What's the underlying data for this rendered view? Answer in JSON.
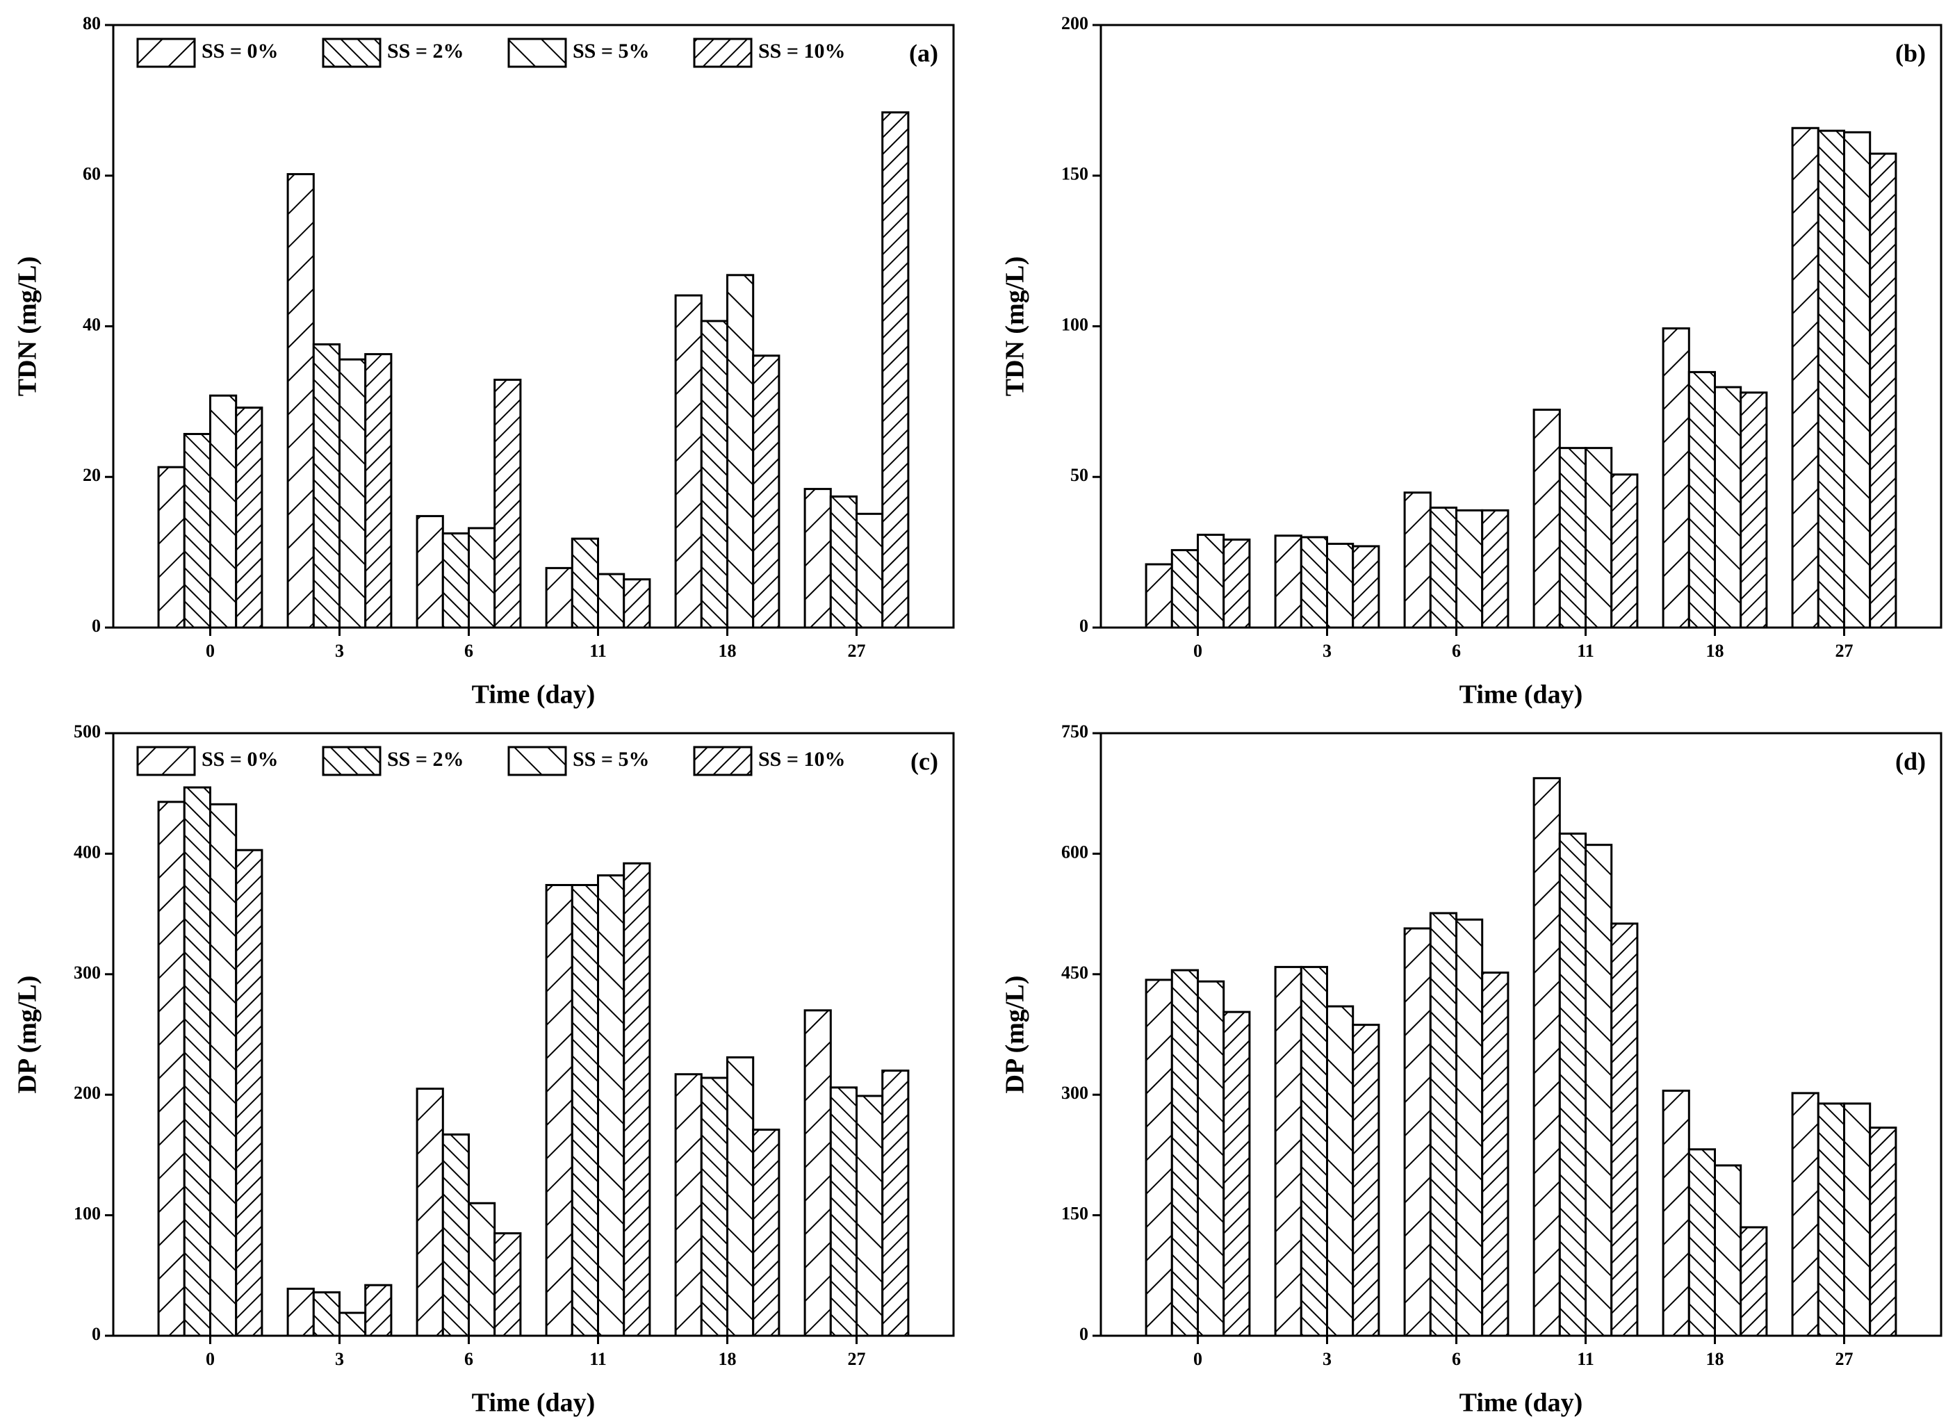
{
  "chart_data": [
    {
      "type": "bar",
      "panel_label": "(a)",
      "xlabel": "Time (day)",
      "ylabel": "TDN (mg/L)",
      "categories": [
        "0",
        "3",
        "6",
        "11",
        "18",
        "27"
      ],
      "ylim": [
        0,
        80
      ],
      "yticks": [
        0,
        20,
        40,
        60,
        80
      ],
      "legend": "upper left",
      "series": [
        {
          "name": "SS = 0%",
          "color": "#000000",
          "hatch": "/",
          "values": [
            21.3,
            60.2,
            14.8,
            7.9,
            44.1,
            18.4
          ]
        },
        {
          "name": "SS = 2%",
          "color": "#000000",
          "hatch": "\\\\",
          "values": [
            25.7,
            37.6,
            12.5,
            11.8,
            40.7,
            17.4
          ]
        },
        {
          "name": "SS = 5%",
          "color": "#000000",
          "hatch": "\\",
          "values": [
            30.8,
            35.6,
            13.2,
            7.1,
            46.8,
            15.1
          ]
        },
        {
          "name": "SS = 10%",
          "color": "#000000",
          "hatch": "//",
          "values": [
            29.2,
            36.3,
            32.9,
            6.4,
            36.1,
            68.4
          ]
        }
      ]
    },
    {
      "type": "bar",
      "panel_label": "(b)",
      "xlabel": "Time (day)",
      "ylabel": "TDN (mg/L)",
      "categories": [
        "0",
        "3",
        "6",
        "11",
        "18",
        "27"
      ],
      "ylim": [
        0,
        200
      ],
      "yticks": [
        0,
        50,
        100,
        150,
        200
      ],
      "series": [
        {
          "color": "#000000",
          "hatch": "/",
          "values": [
            21,
            30.5,
            44.8,
            72.3,
            99.3,
            165.8
          ]
        },
        {
          "color": "#000000",
          "hatch": "\\\\",
          "values": [
            25.7,
            30,
            39.8,
            59.6,
            84.8,
            164.9
          ]
        },
        {
          "color": "#000000",
          "hatch": "\\",
          "values": [
            30.8,
            27.8,
            38.9,
            59.6,
            79.8,
            164.4
          ]
        },
        {
          "color": "#000000",
          "hatch": "//",
          "values": [
            29.2,
            27,
            38.9,
            50.8,
            78,
            157.3
          ]
        }
      ]
    },
    {
      "type": "bar",
      "panel_label": "(c)",
      "xlabel": "Time (day)",
      "ylabel": "DP (mg/L)",
      "categories": [
        "0",
        "3",
        "6",
        "11",
        "18",
        "27"
      ],
      "ylim": [
        0,
        500
      ],
      "yticks": [
        0,
        100,
        200,
        300,
        400,
        500
      ],
      "legend": "upper left",
      "series": [
        {
          "name": "SS = 0%",
          "color": "#000000",
          "hatch": "/",
          "values": [
            443,
            39,
            205,
            374,
            217,
            270
          ]
        },
        {
          "name": "SS = 2%",
          "color": "#000000",
          "hatch": "\\\\",
          "values": [
            455,
            36,
            167,
            374,
            214,
            206
          ]
        },
        {
          "name": "SS = 5%",
          "color": "#000000",
          "hatch": "\\",
          "values": [
            441,
            19,
            110,
            382,
            231,
            199
          ]
        },
        {
          "name": "SS = 10%",
          "color": "#000000",
          "hatch": "//",
          "values": [
            403,
            42,
            85,
            392,
            171,
            220
          ]
        }
      ]
    },
    {
      "type": "bar",
      "panel_label": "(d)",
      "xlabel": "Time (day)",
      "ylabel": "DP (mg/L)",
      "categories": [
        "0",
        "3",
        "6",
        "11",
        "18",
        "27"
      ],
      "ylim": [
        0,
        750
      ],
      "yticks": [
        0,
        150,
        300,
        450,
        600,
        750
      ],
      "series": [
        {
          "color": "#000000",
          "hatch": "/",
          "values": [
            443,
            459,
            507,
            694,
            305,
            302
          ]
        },
        {
          "color": "#000000",
          "hatch": "\\\\",
          "values": [
            455,
            459,
            526,
            625,
            232,
            289
          ]
        },
        {
          "color": "#000000",
          "hatch": "\\",
          "values": [
            441,
            410,
            518,
            611,
            212,
            289
          ]
        },
        {
          "color": "#000000",
          "hatch": "//",
          "values": [
            403,
            387,
            452,
            513,
            135,
            259
          ]
        }
      ]
    }
  ]
}
